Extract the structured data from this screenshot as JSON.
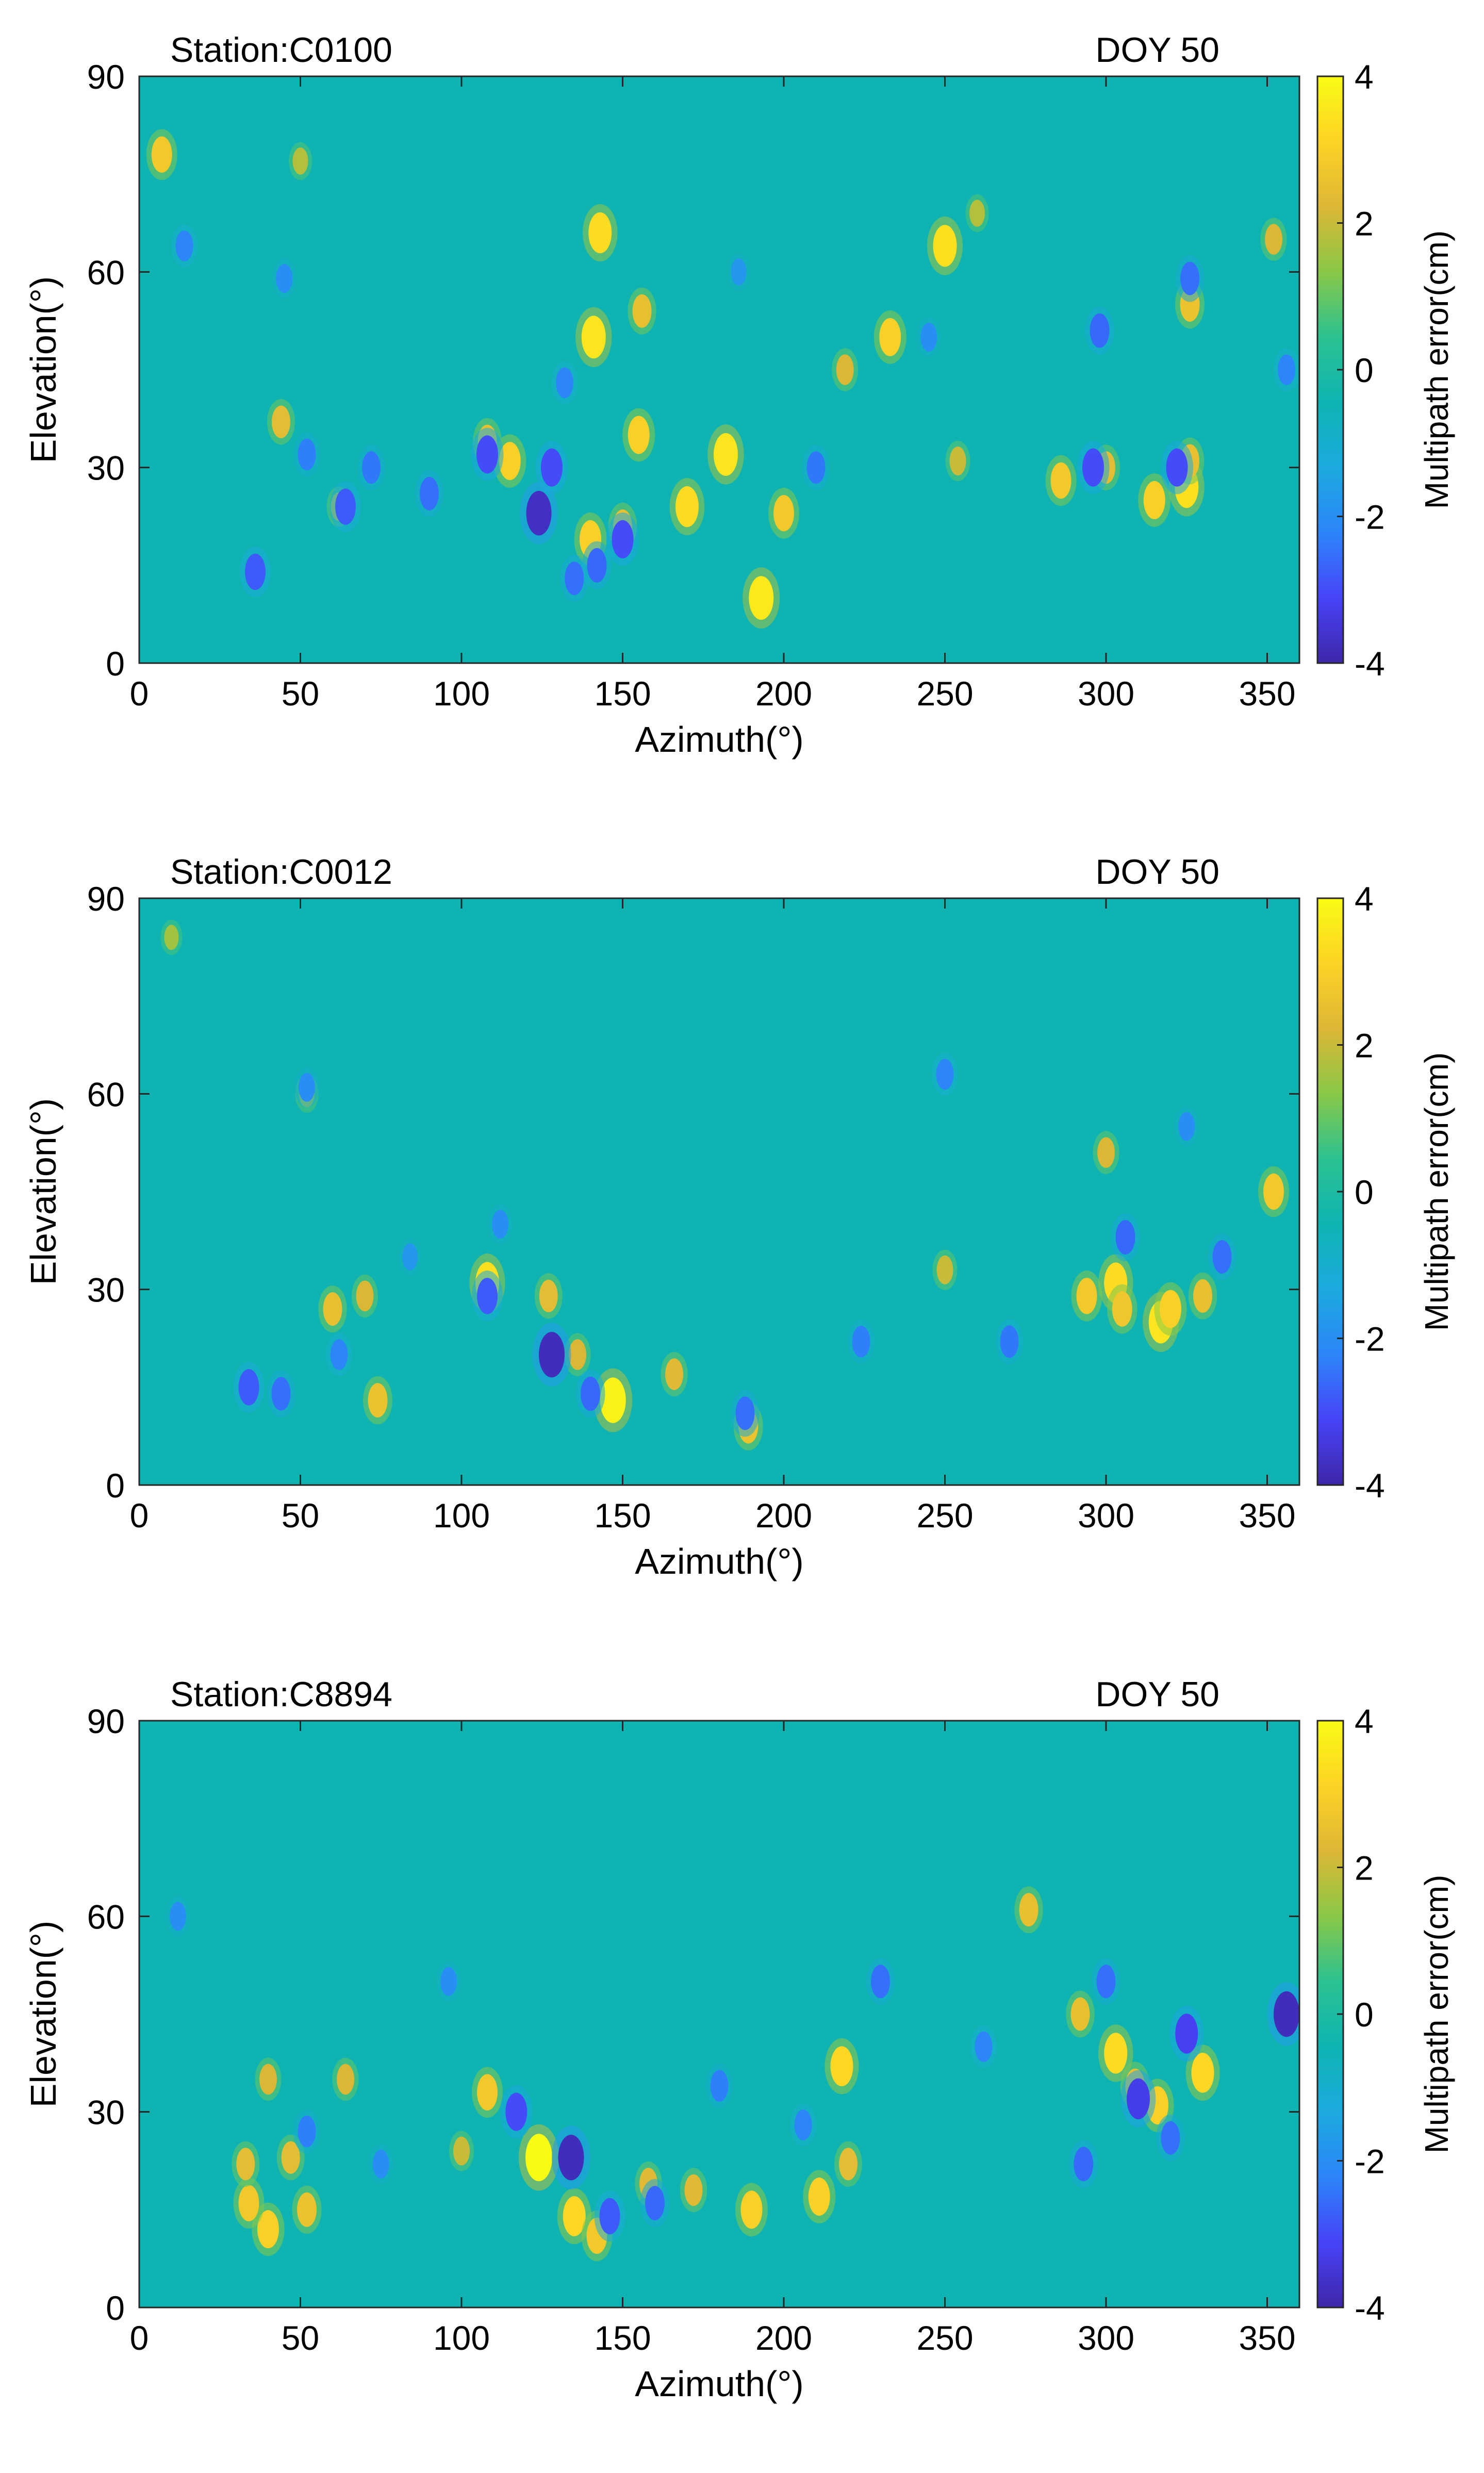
{
  "colors": {
    "background_field": "#0fb4b2",
    "axis": "#262626"
  },
  "colorbar": {
    "label": "Multipath error(cm)",
    "range": [
      -4,
      4
    ],
    "ticks": [
      "4",
      "2",
      "0",
      "-2",
      "-4"
    ],
    "colors": [
      "#3e26a8",
      "#4743f8",
      "#2c85f9",
      "#1caadf",
      "#0fb4b2",
      "#2bc291",
      "#89c847",
      "#ddb736",
      "#fdd325",
      "#f9fb15"
    ]
  },
  "chart_data": [
    {
      "type": "heatmap",
      "station": "Station:C0100",
      "doy": "DOY 50",
      "xlabel": "Azimuth(°)",
      "ylabel": "Elevation(°)",
      "xlim": [
        0,
        360
      ],
      "ylim": [
        0,
        90
      ],
      "xticks": [
        "0",
        "50",
        "100",
        "150",
        "200",
        "250",
        "300",
        "350"
      ],
      "yticks": [
        "0",
        "30",
        "60",
        "90"
      ],
      "anomalies": [
        {
          "az": 7,
          "el": 78,
          "v": 2.8
        },
        {
          "az": 50,
          "el": 77,
          "v": 1.8
        },
        {
          "az": 143,
          "el": 66,
          "v": 3.3
        },
        {
          "az": 250,
          "el": 64,
          "v": 3.4
        },
        {
          "az": 141,
          "el": 50,
          "v": 3.5
        },
        {
          "az": 156,
          "el": 54,
          "v": 2.5
        },
        {
          "az": 233,
          "el": 50,
          "v": 3.0
        },
        {
          "az": 155,
          "el": 35,
          "v": 3.0
        },
        {
          "az": 182,
          "el": 32,
          "v": 3.5
        },
        {
          "az": 115,
          "el": 31,
          "v": 3.0
        },
        {
          "az": 108,
          "el": 34,
          "v": 2.5
        },
        {
          "az": 170,
          "el": 24,
          "v": 3.3
        },
        {
          "az": 200,
          "el": 23,
          "v": 2.8
        },
        {
          "az": 193,
          "el": 10,
          "v": 3.6
        },
        {
          "az": 140,
          "el": 19,
          "v": 3.0
        },
        {
          "az": 150,
          "el": 21,
          "v": 2.5
        },
        {
          "az": 325,
          "el": 27,
          "v": 3.4
        },
        {
          "az": 315,
          "el": 25,
          "v": 3.0
        },
        {
          "az": 326,
          "el": 31,
          "v": 2.5
        },
        {
          "az": 286,
          "el": 28,
          "v": 2.8
        },
        {
          "az": 300,
          "el": 30,
          "v": 2.4
        },
        {
          "az": 326,
          "el": 55,
          "v": 2.6
        },
        {
          "az": 44,
          "el": 37,
          "v": 2.4
        },
        {
          "az": 219,
          "el": 45,
          "v": 2.2
        },
        {
          "az": 260,
          "el": 69,
          "v": 1.8
        },
        {
          "az": 352,
          "el": 65,
          "v": 2.2
        },
        {
          "az": 62,
          "el": 24,
          "v": 2.0
        },
        {
          "az": 254,
          "el": 31,
          "v": 2.0
        },
        {
          "az": 36,
          "el": 14,
          "v": -2.8
        },
        {
          "az": 124,
          "el": 23,
          "v": -3.7
        },
        {
          "az": 108,
          "el": 32,
          "v": -3.0
        },
        {
          "az": 128,
          "el": 30,
          "v": -3.0
        },
        {
          "az": 150,
          "el": 19,
          "v": -3.0
        },
        {
          "az": 142,
          "el": 15,
          "v": -2.6
        },
        {
          "az": 135,
          "el": 13,
          "v": -2.5
        },
        {
          "az": 64,
          "el": 24,
          "v": -2.8
        },
        {
          "az": 72,
          "el": 30,
          "v": -2.4
        },
        {
          "az": 52,
          "el": 32,
          "v": -2.3
        },
        {
          "az": 45,
          "el": 59,
          "v": -2.0
        },
        {
          "az": 296,
          "el": 30,
          "v": -3.0
        },
        {
          "az": 322,
          "el": 30,
          "v": -3.0
        },
        {
          "az": 326,
          "el": 59,
          "v": -2.5
        },
        {
          "az": 298,
          "el": 51,
          "v": -2.6
        },
        {
          "az": 356,
          "el": 45,
          "v": -2.2
        },
        {
          "az": 90,
          "el": 26,
          "v": -2.5
        },
        {
          "az": 132,
          "el": 43,
          "v": -2.2
        },
        {
          "az": 14,
          "el": 64,
          "v": -2.2
        },
        {
          "az": 186,
          "el": 60,
          "v": -1.8
        },
        {
          "az": 210,
          "el": 30,
          "v": -2.4
        },
        {
          "az": 245,
          "el": 50,
          "v": -2.0
        }
      ]
    },
    {
      "type": "heatmap",
      "station": "Station:C0012",
      "doy": "DOY 50",
      "xlabel": "Azimuth(°)",
      "ylabel": "Elevation(°)",
      "xlim": [
        0,
        360
      ],
      "ylim": [
        0,
        90
      ],
      "xticks": [
        "0",
        "50",
        "100",
        "150",
        "200",
        "250",
        "300",
        "350"
      ],
      "yticks": [
        "0",
        "30",
        "60",
        "90"
      ],
      "anomalies": [
        {
          "az": 108,
          "el": 31,
          "v": 3.4
        },
        {
          "az": 147,
          "el": 13,
          "v": 3.8
        },
        {
          "az": 317,
          "el": 25,
          "v": 3.5
        },
        {
          "az": 320,
          "el": 27,
          "v": 3.0
        },
        {
          "az": 303,
          "el": 31,
          "v": 3.3
        },
        {
          "az": 294,
          "el": 29,
          "v": 2.8
        },
        {
          "az": 305,
          "el": 27,
          "v": 2.7
        },
        {
          "az": 330,
          "el": 29,
          "v": 2.5
        },
        {
          "az": 352,
          "el": 45,
          "v": 2.8
        },
        {
          "az": 74,
          "el": 13,
          "v": 2.6
        },
        {
          "az": 60,
          "el": 27,
          "v": 2.5
        },
        {
          "az": 70,
          "el": 29,
          "v": 2.2
        },
        {
          "az": 189,
          "el": 9,
          "v": 2.6
        },
        {
          "az": 127,
          "el": 29,
          "v": 2.4
        },
        {
          "az": 166,
          "el": 17,
          "v": 2.3
        },
        {
          "az": 300,
          "el": 51,
          "v": 2.2
        },
        {
          "az": 250,
          "el": 33,
          "v": 2.0
        },
        {
          "az": 52,
          "el": 60,
          "v": 1.8
        },
        {
          "az": 136,
          "el": 20,
          "v": 2.2
        },
        {
          "az": 10,
          "el": 84,
          "v": 1.6
        },
        {
          "az": 128,
          "el": 20,
          "v": -3.8
        },
        {
          "az": 34,
          "el": 15,
          "v": -2.8
        },
        {
          "az": 44,
          "el": 14,
          "v": -2.5
        },
        {
          "az": 108,
          "el": 29,
          "v": -2.8
        },
        {
          "az": 140,
          "el": 14,
          "v": -2.6
        },
        {
          "az": 188,
          "el": 11,
          "v": -2.5
        },
        {
          "az": 270,
          "el": 22,
          "v": -2.4
        },
        {
          "az": 306,
          "el": 38,
          "v": -2.6
        },
        {
          "az": 336,
          "el": 35,
          "v": -2.5
        },
        {
          "az": 250,
          "el": 63,
          "v": -2.2
        },
        {
          "az": 52,
          "el": 61,
          "v": -2.0
        },
        {
          "az": 112,
          "el": 40,
          "v": -2.0
        },
        {
          "az": 224,
          "el": 22,
          "v": -2.3
        },
        {
          "az": 62,
          "el": 20,
          "v": -2.2
        },
        {
          "az": 325,
          "el": 55,
          "v": -2.0
        },
        {
          "az": 84,
          "el": 35,
          "v": -1.8
        }
      ]
    },
    {
      "type": "heatmap",
      "station": "Station:C8894",
      "doy": "DOY 50",
      "xlabel": "Azimuth(°)",
      "ylabel": "Elevation(°)",
      "xlim": [
        0,
        360
      ],
      "ylim": [
        0,
        90
      ],
      "xticks": [
        "0",
        "50",
        "100",
        "150",
        "200",
        "250",
        "300",
        "350"
      ],
      "yticks": [
        "0",
        "30",
        "60",
        "90"
      ],
      "anomalies": [
        {
          "az": 124,
          "el": 23,
          "v": 4.0
        },
        {
          "az": 135,
          "el": 14,
          "v": 3.2
        },
        {
          "az": 142,
          "el": 11,
          "v": 2.8
        },
        {
          "az": 218,
          "el": 37,
          "v": 3.2
        },
        {
          "az": 211,
          "el": 17,
          "v": 3.0
        },
        {
          "az": 190,
          "el": 15,
          "v": 3.0
        },
        {
          "az": 40,
          "el": 12,
          "v": 3.0
        },
        {
          "az": 34,
          "el": 16,
          "v": 2.8
        },
        {
          "az": 303,
          "el": 39,
          "v": 3.3
        },
        {
          "az": 316,
          "el": 31,
          "v": 3.0
        },
        {
          "az": 330,
          "el": 36,
          "v": 3.2
        },
        {
          "az": 309,
          "el": 34,
          "v": 2.6
        },
        {
          "az": 276,
          "el": 61,
          "v": 2.5
        },
        {
          "az": 108,
          "el": 33,
          "v": 2.8
        },
        {
          "az": 52,
          "el": 15,
          "v": 2.6
        },
        {
          "az": 47,
          "el": 23,
          "v": 2.4
        },
        {
          "az": 33,
          "el": 22,
          "v": 2.4
        },
        {
          "az": 158,
          "el": 19,
          "v": 2.3
        },
        {
          "az": 172,
          "el": 18,
          "v": 2.3
        },
        {
          "az": 220,
          "el": 22,
          "v": 2.4
        },
        {
          "az": 40,
          "el": 35,
          "v": 2.2
        },
        {
          "az": 64,
          "el": 35,
          "v": 2.2
        },
        {
          "az": 100,
          "el": 24,
          "v": 2.0
        },
        {
          "az": 292,
          "el": 45,
          "v": 2.5
        },
        {
          "az": 356,
          "el": 45,
          "v": -3.8
        },
        {
          "az": 134,
          "el": 23,
          "v": -3.8
        },
        {
          "az": 310,
          "el": 32,
          "v": -3.3
        },
        {
          "az": 325,
          "el": 42,
          "v": -3.2
        },
        {
          "az": 117,
          "el": 30,
          "v": -3.0
        },
        {
          "az": 293,
          "el": 22,
          "v": -2.6
        },
        {
          "az": 230,
          "el": 50,
          "v": -2.5
        },
        {
          "az": 146,
          "el": 14,
          "v": -2.8
        },
        {
          "az": 160,
          "el": 16,
          "v": -2.6
        },
        {
          "az": 300,
          "el": 50,
          "v": -2.5
        },
        {
          "az": 320,
          "el": 26,
          "v": -2.5
        },
        {
          "az": 52,
          "el": 27,
          "v": -2.3
        },
        {
          "az": 180,
          "el": 34,
          "v": -2.3
        },
        {
          "az": 262,
          "el": 40,
          "v": -2.2
        },
        {
          "az": 12,
          "el": 60,
          "v": -2.0
        },
        {
          "az": 96,
          "el": 50,
          "v": -2.0
        },
        {
          "az": 206,
          "el": 28,
          "v": -2.2
        },
        {
          "az": 75,
          "el": 22,
          "v": -2.0
        }
      ]
    }
  ]
}
